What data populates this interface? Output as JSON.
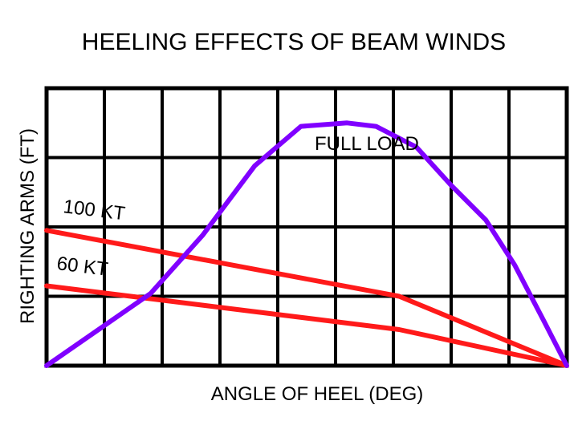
{
  "chart_data": {
    "type": "line",
    "title": "HEELING EFFECTS OF BEAM WINDS",
    "xlabel": "ANGLE OF HEEL (DEG)",
    "ylabel": "RIGHTING ARMS (FT)",
    "x_ticks_shown": false,
    "y_ticks_shown": false,
    "grid": true,
    "grid_columns": 9,
    "grid_rows": 4,
    "xlim": [
      0,
      9
    ],
    "ylim": [
      0,
      4
    ],
    "series": [
      {
        "name": "FULL LOAD",
        "color": "#8000ff",
        "x": [
          0,
          0.9,
          1.8,
          2.7,
          3.6,
          4.4,
          5.2,
          5.7,
          6.4,
          7.0,
          7.6,
          8.1,
          8.6,
          9.0
        ],
        "y": [
          0.0,
          0.52,
          1.04,
          1.88,
          2.88,
          3.45,
          3.5,
          3.45,
          3.15,
          2.6,
          2.1,
          1.45,
          0.65,
          0.0
        ]
      },
      {
        "name": "100 KT",
        "color": "#ff1a1a",
        "x": [
          0,
          6.1,
          9.0
        ],
        "y": [
          1.95,
          1.0,
          0.0
        ]
      },
      {
        "name": "60 KT",
        "color": "#ff1a1a",
        "x": [
          0,
          6.1,
          9.0
        ],
        "y": [
          1.15,
          0.52,
          0.0
        ]
      }
    ]
  }
}
